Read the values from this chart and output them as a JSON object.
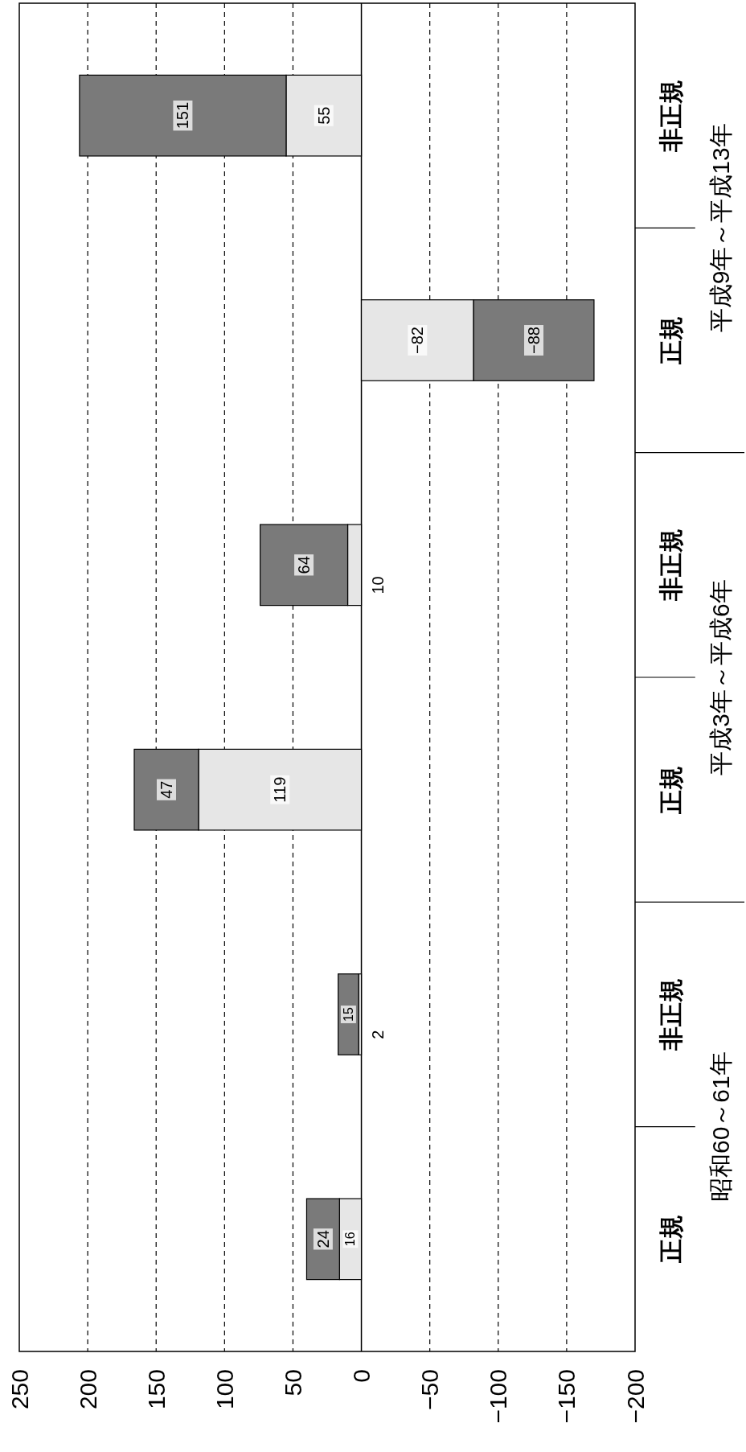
{
  "chart_data": {
    "type": "bar",
    "orientation": "horizontal",
    "stacked": true,
    "categories": [
      "非正規",
      "正規",
      "非正規",
      "正規",
      "非正規",
      "正規"
    ],
    "series": [
      {
        "color": "#e6e6e6",
        "values": [
          55,
          -82,
          10,
          119,
          2,
          16
        ]
      },
      {
        "color": "#7a7a7a",
        "values": [
          151,
          -88,
          64,
          47,
          15,
          24
        ]
      }
    ],
    "xlim": [
      250,
      -200
    ],
    "xticks": [
      250,
      200,
      150,
      100,
      50,
      0,
      -50,
      -100,
      -150,
      -200
    ],
    "grid": "x",
    "data_labels": true,
    "annotations": [
      "平成9年～平成13年",
      "平成3年～平成6年",
      "昭和60～61年"
    ]
  }
}
